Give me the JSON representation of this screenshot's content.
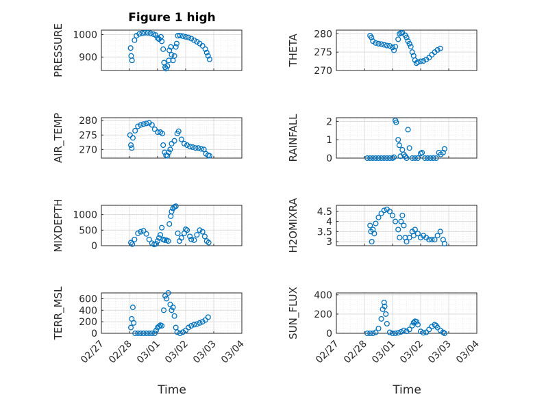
{
  "figure_title": "Figure 1 high",
  "marker_color": "#0072BD",
  "chart_data": [
    {
      "type": "scatter",
      "ylabel": "PRESSURE",
      "ylim": [
        840,
        1020
      ],
      "yticks": [
        900,
        1000
      ],
      "xlim": [
        "02/27",
        "03/04"
      ],
      "grid": "minor",
      "points": [
        [
          1.04,
          940
        ],
        [
          1.06,
          905
        ],
        [
          1.09,
          885
        ],
        [
          1.18,
          975
        ],
        [
          1.25,
          995
        ],
        [
          1.35,
          1003
        ],
        [
          1.45,
          1006
        ],
        [
          1.55,
          1008
        ],
        [
          1.65,
          1008
        ],
        [
          1.75,
          1006
        ],
        [
          1.85,
          1002
        ],
        [
          1.93,
          998
        ],
        [
          2.0,
          985
        ],
        [
          2.05,
          980
        ],
        [
          2.12,
          990
        ],
        [
          2.15,
          970
        ],
        [
          2.2,
          935
        ],
        [
          2.23,
          875
        ],
        [
          2.27,
          855
        ],
        [
          2.3,
          848
        ],
        [
          2.35,
          860
        ],
        [
          2.4,
          885
        ],
        [
          2.42,
          930
        ],
        [
          2.47,
          945
        ],
        [
          2.5,
          910
        ],
        [
          2.55,
          885
        ],
        [
          2.6,
          905
        ],
        [
          2.65,
          945
        ],
        [
          2.68,
          960
        ],
        [
          2.72,
          995
        ],
        [
          2.8,
          996
        ],
        [
          2.9,
          993
        ],
        [
          3.0,
          990
        ],
        [
          3.1,
          987
        ],
        [
          3.2,
          982
        ],
        [
          3.3,
          975
        ],
        [
          3.4,
          968
        ],
        [
          3.5,
          960
        ],
        [
          3.6,
          950
        ],
        [
          3.7,
          935
        ],
        [
          3.75,
          920
        ],
        [
          3.8,
          905
        ],
        [
          3.85,
          890
        ]
      ]
    },
    {
      "type": "scatter",
      "ylabel": "THETA",
      "ylim": [
        270,
        281
      ],
      "yticks": [
        270,
        275,
        280
      ],
      "xlim": [
        "02/27",
        "03/04"
      ],
      "grid": "minor",
      "points": [
        [
          1.2,
          279.5
        ],
        [
          1.25,
          279.0
        ],
        [
          1.3,
          278.0
        ],
        [
          1.4,
          277.5
        ],
        [
          1.5,
          277.3
        ],
        [
          1.6,
          277.2
        ],
        [
          1.7,
          277.0
        ],
        [
          1.8,
          276.8
        ],
        [
          1.9,
          276.7
        ],
        [
          2.0,
          276.3
        ],
        [
          2.05,
          275.5
        ],
        [
          2.1,
          276.5
        ],
        [
          2.2,
          278.5
        ],
        [
          2.25,
          280.0
        ],
        [
          2.3,
          280.2
        ],
        [
          2.35,
          280.3
        ],
        [
          2.45,
          279.6
        ],
        [
          2.5,
          279.0
        ],
        [
          2.55,
          278.0
        ],
        [
          2.6,
          277.3
        ],
        [
          2.65,
          276.5
        ],
        [
          2.7,
          275.0
        ],
        [
          2.75,
          274.0
        ],
        [
          2.8,
          272.8
        ],
        [
          2.85,
          272.0
        ],
        [
          2.9,
          272.3
        ],
        [
          3.0,
          272.5
        ],
        [
          3.1,
          272.6
        ],
        [
          3.2,
          273.0
        ],
        [
          3.3,
          273.5
        ],
        [
          3.4,
          274.3
        ],
        [
          3.5,
          275.0
        ],
        [
          3.6,
          275.6
        ],
        [
          3.7,
          276.0
        ]
      ]
    },
    {
      "type": "scatter",
      "ylabel": "AIR_TEMP",
      "ylim": [
        267,
        281
      ],
      "yticks": [
        270,
        275,
        280
      ],
      "xlim": [
        "02/27",
        "03/04"
      ],
      "grid": "minor",
      "points": [
        [
          1.02,
          275.0
        ],
        [
          1.05,
          271.5
        ],
        [
          1.08,
          270.5
        ],
        [
          1.12,
          274.0
        ],
        [
          1.2,
          276.5
        ],
        [
          1.3,
          278.0
        ],
        [
          1.4,
          278.5
        ],
        [
          1.5,
          278.8
        ],
        [
          1.6,
          279.0
        ],
        [
          1.7,
          279.2
        ],
        [
          1.8,
          278.5
        ],
        [
          1.9,
          277.0
        ],
        [
          2.0,
          276.0
        ],
        [
          2.1,
          276.0
        ],
        [
          2.17,
          275.5
        ],
        [
          2.2,
          271.5
        ],
        [
          2.25,
          269.0
        ],
        [
          2.3,
          268.0
        ],
        [
          2.35,
          267.8
        ],
        [
          2.4,
          269.0
        ],
        [
          2.45,
          270.0
        ],
        [
          2.5,
          272.0
        ],
        [
          2.6,
          273.0
        ],
        [
          2.7,
          275.5
        ],
        [
          2.75,
          276.3
        ],
        [
          2.85,
          273.5
        ],
        [
          2.95,
          272.0
        ],
        [
          3.05,
          271.5
        ],
        [
          3.15,
          271.0
        ],
        [
          3.25,
          270.8
        ],
        [
          3.35,
          270.5
        ],
        [
          3.45,
          270.5
        ],
        [
          3.55,
          270.2
        ],
        [
          3.65,
          270.0
        ],
        [
          3.72,
          268.5
        ],
        [
          3.8,
          268.0
        ],
        [
          3.85,
          267.8
        ]
      ]
    },
    {
      "type": "scatter",
      "ylabel": "RAINFALL",
      "ylim": [
        0,
        2.2
      ],
      "yticks": [
        0,
        1,
        2
      ],
      "xlim": [
        "02/27",
        "03/04"
      ],
      "grid": "minor",
      "points": [
        [
          1.1,
          0
        ],
        [
          1.2,
          0
        ],
        [
          1.3,
          0
        ],
        [
          1.4,
          0
        ],
        [
          1.5,
          0
        ],
        [
          1.6,
          0
        ],
        [
          1.7,
          0
        ],
        [
          1.8,
          0
        ],
        [
          1.9,
          0
        ],
        [
          2.0,
          0
        ],
        [
          2.05,
          0.05
        ],
        [
          2.1,
          2.05
        ],
        [
          2.13,
          1.95
        ],
        [
          2.2,
          1.0
        ],
        [
          2.24,
          0.7
        ],
        [
          2.28,
          0.1
        ],
        [
          2.35,
          0.45
        ],
        [
          2.4,
          0.2
        ],
        [
          2.45,
          0.1
        ],
        [
          2.5,
          0
        ],
        [
          2.55,
          1.55
        ],
        [
          2.6,
          0.55
        ],
        [
          2.7,
          0
        ],
        [
          2.8,
          0
        ],
        [
          2.9,
          0
        ],
        [
          3.0,
          0.25
        ],
        [
          3.05,
          0.3
        ],
        [
          3.15,
          0
        ],
        [
          3.25,
          0
        ],
        [
          3.35,
          0
        ],
        [
          3.45,
          0
        ],
        [
          3.55,
          0
        ],
        [
          3.65,
          0.3
        ],
        [
          3.72,
          0.2
        ],
        [
          3.8,
          0.3
        ],
        [
          3.85,
          0.5
        ]
      ]
    },
    {
      "type": "scatter",
      "ylabel": "MIXDEPTH",
      "ylim": [
        0,
        1300
      ],
      "yticks": [
        0,
        500,
        1000
      ],
      "xlim": [
        "02/27",
        "03/04"
      ],
      "grid": "minor",
      "points": [
        [
          1.05,
          100
        ],
        [
          1.1,
          50
        ],
        [
          1.18,
          200
        ],
        [
          1.3,
          400
        ],
        [
          1.4,
          450
        ],
        [
          1.5,
          480
        ],
        [
          1.6,
          380
        ],
        [
          1.7,
          200
        ],
        [
          1.8,
          80
        ],
        [
          1.88,
          40
        ],
        [
          1.95,
          60
        ],
        [
          2.0,
          150
        ],
        [
          2.05,
          250
        ],
        [
          2.1,
          350
        ],
        [
          2.15,
          580
        ],
        [
          2.2,
          200
        ],
        [
          2.25,
          180
        ],
        [
          2.32,
          175
        ],
        [
          2.38,
          150
        ],
        [
          2.42,
          700
        ],
        [
          2.47,
          950
        ],
        [
          2.5,
          1100
        ],
        [
          2.55,
          1200
        ],
        [
          2.6,
          1250
        ],
        [
          2.65,
          1270
        ],
        [
          2.72,
          400
        ],
        [
          2.78,
          150
        ],
        [
          2.85,
          250
        ],
        [
          2.95,
          400
        ],
        [
          3.0,
          530
        ],
        [
          3.05,
          500
        ],
        [
          3.15,
          300
        ],
        [
          3.2,
          200
        ],
        [
          3.3,
          180
        ],
        [
          3.4,
          350
        ],
        [
          3.5,
          500
        ],
        [
          3.6,
          450
        ],
        [
          3.68,
          300
        ],
        [
          3.75,
          150
        ],
        [
          3.82,
          100
        ]
      ]
    },
    {
      "type": "scatter",
      "ylabel": "H2OMIXRA",
      "ylim": [
        2.8,
        4.8
      ],
      "yticks": [
        3,
        3.5,
        4,
        4.5
      ],
      "xlim": [
        "02/27",
        "03/04"
      ],
      "grid": "minor",
      "points": [
        [
          1.2,
          3.8
        ],
        [
          1.23,
          3.5
        ],
        [
          1.26,
          3.0
        ],
        [
          1.3,
          3.6
        ],
        [
          1.35,
          3.4
        ],
        [
          1.4,
          3.9
        ],
        [
          1.5,
          4.2
        ],
        [
          1.6,
          4.4
        ],
        [
          1.7,
          4.55
        ],
        [
          1.8,
          4.6
        ],
        [
          1.9,
          4.5
        ],
        [
          2.0,
          4.3
        ],
        [
          2.1,
          4.0
        ],
        [
          2.2,
          3.6
        ],
        [
          2.25,
          3.2
        ],
        [
          2.3,
          4.0
        ],
        [
          2.35,
          4.3
        ],
        [
          2.4,
          3.8
        ],
        [
          2.45,
          3.2
        ],
        [
          2.5,
          3.0
        ],
        [
          2.6,
          3.2
        ],
        [
          2.7,
          3.5
        ],
        [
          2.75,
          3.3
        ],
        [
          2.8,
          3.6
        ],
        [
          2.9,
          3.4
        ],
        [
          3.0,
          3.2
        ],
        [
          3.1,
          3.3
        ],
        [
          3.2,
          3.2
        ],
        [
          3.3,
          3.1
        ],
        [
          3.4,
          3.1
        ],
        [
          3.5,
          3.1
        ],
        [
          3.6,
          3.3
        ],
        [
          3.7,
          3.5
        ],
        [
          3.8,
          3.1
        ],
        [
          3.85,
          2.9
        ]
      ]
    },
    {
      "type": "scatter",
      "ylabel": "TERR_MSL",
      "ylim": [
        0,
        700
      ],
      "yticks": [
        0,
        200,
        400,
        600
      ],
      "xlim": [
        "02/27",
        "03/04"
      ],
      "grid": "minor",
      "points": [
        [
          1.05,
          100
        ],
        [
          1.08,
          250
        ],
        [
          1.12,
          450
        ],
        [
          1.15,
          180
        ],
        [
          1.2,
          0
        ],
        [
          1.3,
          0
        ],
        [
          1.4,
          0
        ],
        [
          1.5,
          0
        ],
        [
          1.6,
          0
        ],
        [
          1.7,
          0
        ],
        [
          1.8,
          0
        ],
        [
          1.9,
          0
        ],
        [
          1.95,
          50
        ],
        [
          2.0,
          100
        ],
        [
          2.05,
          120
        ],
        [
          2.1,
          140
        ],
        [
          2.15,
          130
        ],
        [
          2.22,
          400
        ],
        [
          2.27,
          650
        ],
        [
          2.32,
          600
        ],
        [
          2.38,
          700
        ],
        [
          2.45,
          500
        ],
        [
          2.5,
          400
        ],
        [
          2.55,
          450
        ],
        [
          2.6,
          300
        ],
        [
          2.65,
          100
        ],
        [
          2.7,
          20
        ],
        [
          2.8,
          0
        ],
        [
          2.9,
          20
        ],
        [
          3.0,
          50
        ],
        [
          3.1,
          100
        ],
        [
          3.2,
          130
        ],
        [
          3.3,
          150
        ],
        [
          3.4,
          160
        ],
        [
          3.5,
          180
        ],
        [
          3.6,
          200
        ],
        [
          3.7,
          230
        ],
        [
          3.8,
          280
        ]
      ]
    },
    {
      "type": "scatter",
      "ylabel": "SUN_FLUX",
      "ylim": [
        0,
        420
      ],
      "yticks": [
        0,
        200,
        400
      ],
      "xlim": [
        "02/27",
        "03/04"
      ],
      "grid": "minor",
      "points": [
        [
          1.1,
          0
        ],
        [
          1.2,
          0
        ],
        [
          1.3,
          0
        ],
        [
          1.4,
          10
        ],
        [
          1.5,
          50
        ],
        [
          1.6,
          150
        ],
        [
          1.65,
          250
        ],
        [
          1.7,
          320
        ],
        [
          1.72,
          280
        ],
        [
          1.76,
          200
        ],
        [
          1.8,
          100
        ],
        [
          1.9,
          10
        ],
        [
          2.0,
          0
        ],
        [
          2.1,
          0
        ],
        [
          2.2,
          5
        ],
        [
          2.3,
          15
        ],
        [
          2.4,
          30
        ],
        [
          2.5,
          20
        ],
        [
          2.6,
          40
        ],
        [
          2.7,
          80
        ],
        [
          2.75,
          110
        ],
        [
          2.8,
          125
        ],
        [
          2.85,
          120
        ],
        [
          2.9,
          90
        ],
        [
          3.0,
          20
        ],
        [
          3.1,
          5
        ],
        [
          3.2,
          10
        ],
        [
          3.3,
          40
        ],
        [
          3.4,
          70
        ],
        [
          3.5,
          90
        ],
        [
          3.55,
          80
        ],
        [
          3.6,
          60
        ],
        [
          3.7,
          30
        ],
        [
          3.8,
          10
        ],
        [
          3.85,
          0
        ]
      ]
    }
  ],
  "time_ticks": [
    "02/27",
    "02/28",
    "03/01",
    "03/02",
    "03/03",
    "03/04"
  ],
  "xlabel": "Time"
}
